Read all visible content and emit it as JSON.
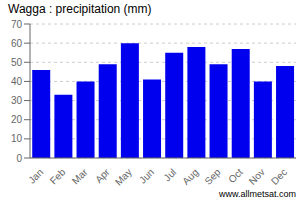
{
  "chart_data": {
    "type": "bar",
    "title": "Wagga : precipitation (mm)",
    "categories": [
      "Jan",
      "Feb",
      "Mar",
      "Apr",
      "May",
      "Jun",
      "Jul",
      "Aug",
      "Sep",
      "Oct",
      "Nov",
      "Dec"
    ],
    "values": [
      46,
      33,
      40,
      49,
      60,
      41,
      55,
      58,
      49,
      57,
      40,
      48
    ],
    "color": "#0000ee",
    "ylim": [
      0,
      70
    ],
    "yticks": [
      0,
      10,
      20,
      30,
      40,
      50,
      60,
      70
    ],
    "grid": true,
    "annotations": [
      "www.allmetsat.com"
    ]
  }
}
